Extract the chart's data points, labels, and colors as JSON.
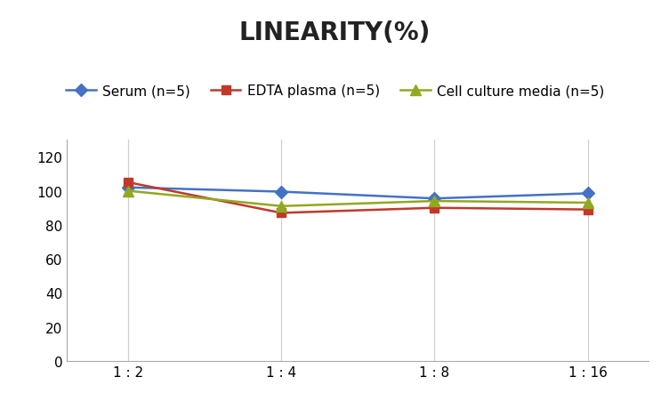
{
  "title": "LINEARITY(%)",
  "x_labels": [
    "1 : 2",
    "1 : 4",
    "1 : 8",
    "1 : 16"
  ],
  "x_positions": [
    0,
    1,
    2,
    3
  ],
  "series": [
    {
      "label": "Serum (n=5)",
      "values": [
        102,
        99.5,
        95.5,
        98.5
      ],
      "color": "#4472C4",
      "marker": "D",
      "markersize": 7,
      "linewidth": 1.8
    },
    {
      "label": "EDTA plasma (n=5)",
      "values": [
        105,
        87,
        90,
        89
      ],
      "color": "#C0392B",
      "marker": "s",
      "markersize": 7,
      "linewidth": 1.8
    },
    {
      "label": "Cell culture media (n=5)",
      "values": [
        100,
        91,
        94,
        93
      ],
      "color": "#92A820",
      "marker": "^",
      "markersize": 8,
      "linewidth": 1.8
    }
  ],
  "ylim": [
    0,
    130
  ],
  "yticks": [
    0,
    20,
    40,
    60,
    80,
    100,
    120
  ],
  "background_color": "#ffffff",
  "title_fontsize": 20,
  "legend_fontsize": 11,
  "tick_fontsize": 11,
  "grid_color": "#d0d0d0",
  "spine_color": "#aaaaaa"
}
